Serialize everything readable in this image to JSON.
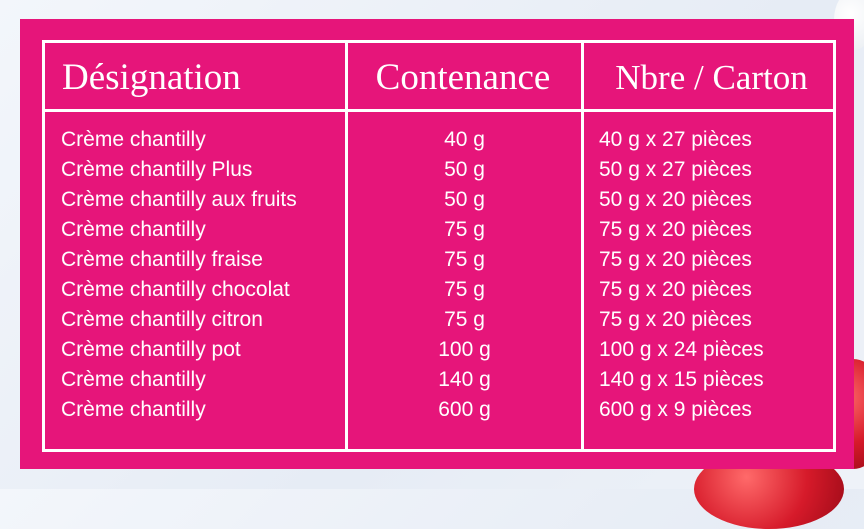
{
  "table": {
    "headers": [
      "Désignation",
      "Contenance",
      "Nbre / Carton"
    ],
    "rows": [
      [
        "Crème chantilly",
        "40 g",
        "40 g x 27 pièces"
      ],
      [
        "Crème chantilly Plus",
        "50 g",
        "50 g x 27 pièces"
      ],
      [
        "Crème chantilly aux fruits",
        "50 g",
        "50 g x 20 pièces"
      ],
      [
        "Crème chantilly",
        "75 g",
        "75 g x 20 pièces"
      ],
      [
        "Crème chantilly fraise",
        "75 g",
        "75 g x 20 pièces"
      ],
      [
        "Crème chantilly chocolat",
        "75 g",
        "75 g x 20 pièces"
      ],
      [
        "Crème chantilly citron",
        "75 g",
        "75 g x 20 pièces"
      ],
      [
        "Crème chantilly pot",
        "100 g",
        "100 g x 24 pièces"
      ],
      [
        "Crème chantilly",
        "140 g",
        "140 g x 15 pièces"
      ],
      [
        "Crème chantilly",
        "600 g",
        "600 g x 9 pièces"
      ]
    ]
  },
  "colors": {
    "panel": "#e6157a",
    "text": "#ffffff",
    "background": "#eef2f8"
  }
}
